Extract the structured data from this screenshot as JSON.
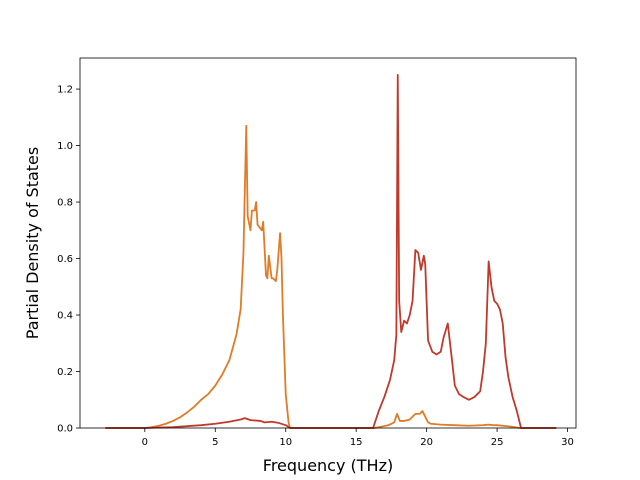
{
  "chart_data": {
    "type": "line",
    "title": "",
    "xlabel": "Frequency (THz)",
    "ylabel": "Partial Density of States",
    "xlim": [
      -4.6,
      30.6
    ],
    "ylim": [
      0,
      1.31
    ],
    "xticks": [
      0,
      5,
      10,
      15,
      20,
      25,
      30
    ],
    "yticks": [
      0.0,
      0.2,
      0.4,
      0.6,
      0.8,
      1.0,
      1.2
    ],
    "xtick_labels": [
      "0",
      "5",
      "10",
      "15",
      "20",
      "25",
      "30"
    ],
    "ytick_labels": [
      "0.0",
      "0.2",
      "0.4",
      "0.6",
      "0.8",
      "1.0",
      "1.2"
    ],
    "grid": false,
    "series": [
      {
        "color": "#e07b27",
        "x": [
          -2.8,
          0,
          0.5,
          1,
          1.5,
          2,
          2.5,
          3,
          3.5,
          4,
          4.5,
          5,
          5.5,
          6,
          6.5,
          6.8,
          7.0,
          7.1,
          7.2,
          7.3,
          7.5,
          7.6,
          7.8,
          7.9,
          8.0,
          8.3,
          8.4,
          8.6,
          8.7,
          8.8,
          9.0,
          9.1,
          9.3,
          9.4,
          9.6,
          9.7,
          9.8,
          10.0,
          10.2,
          10.3,
          16.3,
          16.8,
          17.3,
          17.7,
          17.9,
          18.1,
          18.4,
          18.8,
          19.2,
          19.5,
          19.7,
          19.9,
          20.1,
          20.3,
          21,
          22,
          23,
          24,
          24.4,
          24.7,
          25,
          26,
          26.6,
          29.2
        ],
        "y": [
          0,
          0,
          0.003,
          0.008,
          0.015,
          0.025,
          0.038,
          0.055,
          0.075,
          0.1,
          0.12,
          0.15,
          0.19,
          0.24,
          0.33,
          0.42,
          0.62,
          0.85,
          1.07,
          0.75,
          0.7,
          0.77,
          0.77,
          0.8,
          0.72,
          0.7,
          0.73,
          0.54,
          0.53,
          0.61,
          0.53,
          0.53,
          0.52,
          0.56,
          0.69,
          0.6,
          0.4,
          0.12,
          0.02,
          0,
          0,
          0.005,
          0.01,
          0.02,
          0.05,
          0.025,
          0.025,
          0.03,
          0.05,
          0.05,
          0.06,
          0.04,
          0.02,
          0.015,
          0.012,
          0.01,
          0.008,
          0.01,
          0.012,
          0.01,
          0.01,
          0.005,
          0,
          0
        ]
      },
      {
        "color": "#c0392b",
        "x": [
          -2.8,
          0,
          2,
          4,
          5,
          6,
          6.8,
          7.1,
          7.5,
          8.2,
          8.5,
          9.0,
          9.5,
          10.0,
          10.3,
          16.2,
          16.6,
          17.0,
          17.4,
          17.7,
          17.85,
          17.95,
          18.05,
          18.2,
          18.4,
          18.6,
          18.8,
          19.0,
          19.2,
          19.4,
          19.6,
          19.8,
          19.9,
          20.1,
          20.4,
          20.7,
          21.0,
          21.2,
          21.5,
          21.8,
          22.0,
          22.3,
          22.6,
          23.0,
          23.4,
          23.8,
          24.0,
          24.2,
          24.4,
          24.6,
          24.8,
          25.0,
          25.2,
          25.4,
          25.6,
          25.8,
          26.1,
          26.4,
          26.7,
          29.2
        ],
        "y": [
          0,
          0,
          0.003,
          0.01,
          0.015,
          0.022,
          0.03,
          0.035,
          0.028,
          0.025,
          0.02,
          0.022,
          0.018,
          0.01,
          0,
          0,
          0.06,
          0.11,
          0.17,
          0.24,
          0.33,
          1.25,
          0.45,
          0.34,
          0.38,
          0.37,
          0.4,
          0.45,
          0.63,
          0.62,
          0.56,
          0.61,
          0.58,
          0.31,
          0.27,
          0.26,
          0.27,
          0.32,
          0.37,
          0.24,
          0.15,
          0.12,
          0.11,
          0.1,
          0.11,
          0.13,
          0.2,
          0.3,
          0.59,
          0.5,
          0.45,
          0.44,
          0.42,
          0.37,
          0.25,
          0.18,
          0.11,
          0.06,
          0.0,
          0
        ]
      }
    ]
  }
}
